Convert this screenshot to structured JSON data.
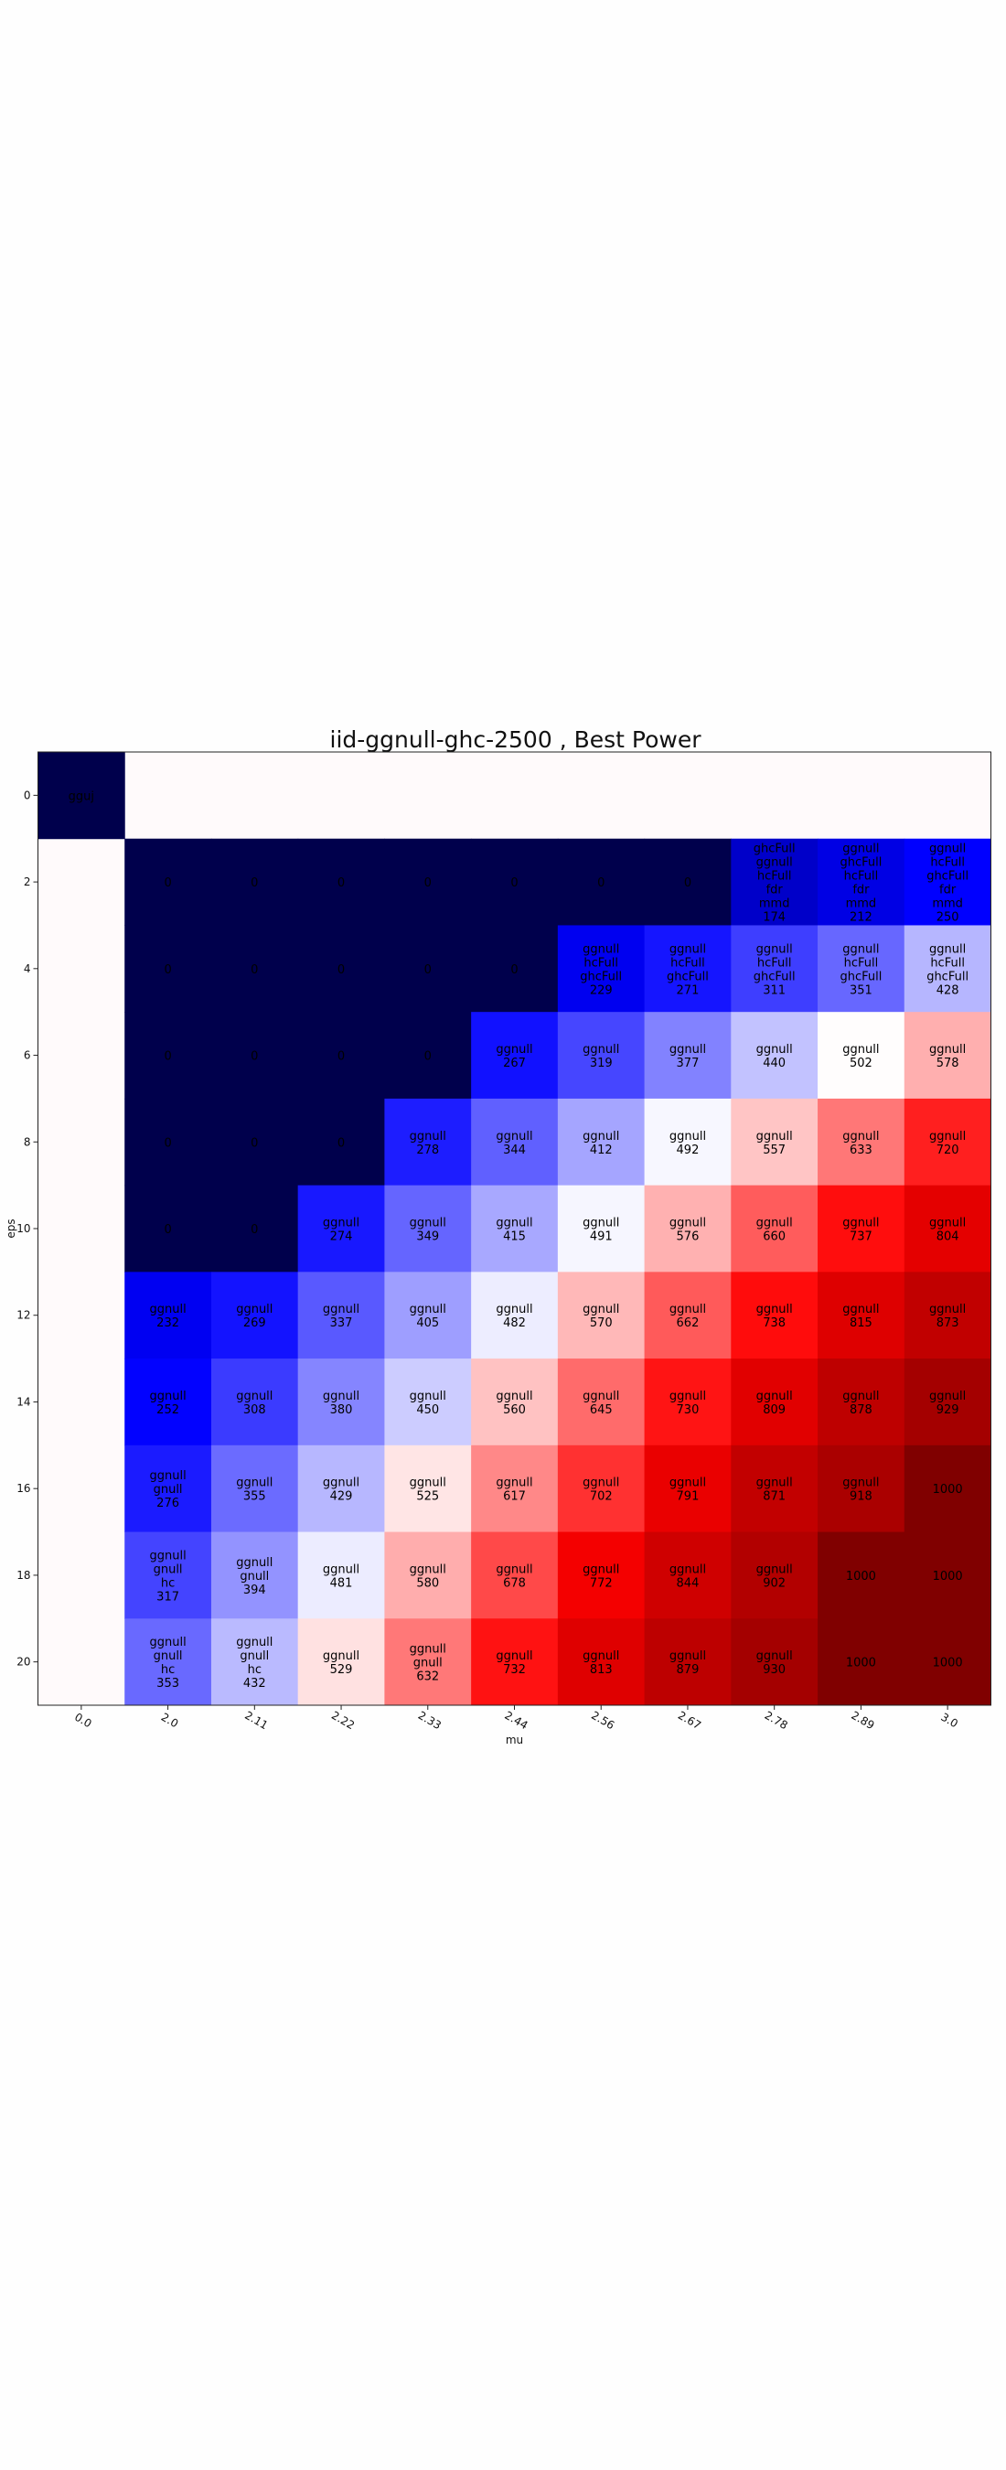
{
  "chart_data": {
    "type": "heatmap",
    "title": "iid-ggnull-ghc-2500 , Best Power",
    "xlabel": "mu",
    "ylabel": "eps",
    "x_categories": [
      "0.0",
      "2.0",
      "2.11",
      "2.22",
      "2.33",
      "2.44",
      "2.56",
      "2.67",
      "2.78",
      "2.89",
      "3.0"
    ],
    "y_categories": [
      "0",
      "2",
      "4",
      "6",
      "8",
      "10",
      "12",
      "14",
      "16",
      "18",
      "20"
    ],
    "color_scale": {
      "low": "#00004c",
      "mid": "#ffffff",
      "high": "#800000",
      "midpoint": 500
    },
    "colors": {
      "low": "#00004c",
      "blue": "#0000ff",
      "mid": "#ffffff",
      "red": "#ff0000",
      "high": "#800000"
    },
    "cells": [
      {
        "row": 0,
        "col": 0,
        "value": 0,
        "label": [
          "gguj"
        ]
      },
      {
        "row": 1,
        "col": 1,
        "value": 0,
        "label": [
          "0"
        ]
      },
      {
        "row": 1,
        "col": 2,
        "value": 0,
        "label": [
          "0"
        ]
      },
      {
        "row": 1,
        "col": 3,
        "value": 0,
        "label": [
          "0"
        ]
      },
      {
        "row": 1,
        "col": 4,
        "value": 0,
        "label": [
          "0"
        ]
      },
      {
        "row": 1,
        "col": 5,
        "value": 0,
        "label": [
          "0"
        ]
      },
      {
        "row": 1,
        "col": 6,
        "value": 0,
        "label": [
          "0"
        ]
      },
      {
        "row": 1,
        "col": 7,
        "value": 0,
        "label": [
          "0"
        ]
      },
      {
        "row": 1,
        "col": 8,
        "value": 174,
        "label": [
          "ghcFull",
          "ggnull",
          "hcFull",
          "fdr",
          "mmd",
          "174"
        ]
      },
      {
        "row": 1,
        "col": 9,
        "value": 212,
        "label": [
          "ggnull",
          "ghcFull",
          "hcFull",
          "fdr",
          "mmd",
          "212"
        ]
      },
      {
        "row": 1,
        "col": 10,
        "value": 250,
        "label": [
          "ggnull",
          "hcFull",
          "ghcFull",
          "fdr",
          "mmd",
          "250"
        ]
      },
      {
        "row": 2,
        "col": 1,
        "value": 0,
        "label": [
          "0"
        ]
      },
      {
        "row": 2,
        "col": 2,
        "value": 0,
        "label": [
          "0"
        ]
      },
      {
        "row": 2,
        "col": 3,
        "value": 0,
        "label": [
          "0"
        ]
      },
      {
        "row": 2,
        "col": 4,
        "value": 0,
        "label": [
          "0"
        ]
      },
      {
        "row": 2,
        "col": 5,
        "value": 0,
        "label": [
          "0"
        ]
      },
      {
        "row": 2,
        "col": 6,
        "value": 229,
        "label": [
          "ggnull",
          "hcFull",
          "ghcFull",
          "229"
        ]
      },
      {
        "row": 2,
        "col": 7,
        "value": 271,
        "label": [
          "ggnull",
          "hcFull",
          "ghcFull",
          "271"
        ]
      },
      {
        "row": 2,
        "col": 8,
        "value": 311,
        "label": [
          "ggnull",
          "hcFull",
          "ghcFull",
          "311"
        ]
      },
      {
        "row": 2,
        "col": 9,
        "value": 351,
        "label": [
          "ggnull",
          "hcFull",
          "ghcFull",
          "351"
        ]
      },
      {
        "row": 2,
        "col": 10,
        "value": 428,
        "label": [
          "ggnull",
          "hcFull",
          "ghcFull",
          "428"
        ]
      },
      {
        "row": 3,
        "col": 1,
        "value": 0,
        "label": [
          "0"
        ]
      },
      {
        "row": 3,
        "col": 2,
        "value": 0,
        "label": [
          "0"
        ]
      },
      {
        "row": 3,
        "col": 3,
        "value": 0,
        "label": [
          "0"
        ]
      },
      {
        "row": 3,
        "col": 4,
        "value": 0,
        "label": [
          "0"
        ]
      },
      {
        "row": 3,
        "col": 5,
        "value": 267,
        "label": [
          "ggnull",
          "267"
        ]
      },
      {
        "row": 3,
        "col": 6,
        "value": 319,
        "label": [
          "ggnull",
          "319"
        ]
      },
      {
        "row": 3,
        "col": 7,
        "value": 377,
        "label": [
          "ggnull",
          "377"
        ]
      },
      {
        "row": 3,
        "col": 8,
        "value": 440,
        "label": [
          "ggnull",
          "440"
        ]
      },
      {
        "row": 3,
        "col": 9,
        "value": 502,
        "label": [
          "ggnull",
          "502"
        ]
      },
      {
        "row": 3,
        "col": 10,
        "value": 578,
        "label": [
          "ggnull",
          "578"
        ]
      },
      {
        "row": 4,
        "col": 1,
        "value": 0,
        "label": [
          "0"
        ]
      },
      {
        "row": 4,
        "col": 2,
        "value": 0,
        "label": [
          "0"
        ]
      },
      {
        "row": 4,
        "col": 3,
        "value": 0,
        "label": [
          "0"
        ]
      },
      {
        "row": 4,
        "col": 4,
        "value": 278,
        "label": [
          "ggnull",
          "278"
        ]
      },
      {
        "row": 4,
        "col": 5,
        "value": 344,
        "label": [
          "ggnull",
          "344"
        ]
      },
      {
        "row": 4,
        "col": 6,
        "value": 412,
        "label": [
          "ggnull",
          "412"
        ]
      },
      {
        "row": 4,
        "col": 7,
        "value": 492,
        "label": [
          "ggnull",
          "492"
        ]
      },
      {
        "row": 4,
        "col": 8,
        "value": 557,
        "label": [
          "ggnull",
          "557"
        ]
      },
      {
        "row": 4,
        "col": 9,
        "value": 633,
        "label": [
          "ggnull",
          "633"
        ]
      },
      {
        "row": 4,
        "col": 10,
        "value": 720,
        "label": [
          "ggnull",
          "720"
        ]
      },
      {
        "row": 5,
        "col": 1,
        "value": 0,
        "label": [
          "0"
        ]
      },
      {
        "row": 5,
        "col": 2,
        "value": 0,
        "label": [
          "0"
        ]
      },
      {
        "row": 5,
        "col": 3,
        "value": 274,
        "label": [
          "ggnull",
          "274"
        ]
      },
      {
        "row": 5,
        "col": 4,
        "value": 349,
        "label": [
          "ggnull",
          "349"
        ]
      },
      {
        "row": 5,
        "col": 5,
        "value": 415,
        "label": [
          "ggnull",
          "415"
        ]
      },
      {
        "row": 5,
        "col": 6,
        "value": 491,
        "label": [
          "ggnull",
          "491"
        ]
      },
      {
        "row": 5,
        "col": 7,
        "value": 576,
        "label": [
          "ggnull",
          "576"
        ]
      },
      {
        "row": 5,
        "col": 8,
        "value": 660,
        "label": [
          "ggnull",
          "660"
        ]
      },
      {
        "row": 5,
        "col": 9,
        "value": 737,
        "label": [
          "ggnull",
          "737"
        ]
      },
      {
        "row": 5,
        "col": 10,
        "value": 804,
        "label": [
          "ggnull",
          "804"
        ]
      },
      {
        "row": 6,
        "col": 1,
        "value": 232,
        "label": [
          "ggnull",
          "232"
        ]
      },
      {
        "row": 6,
        "col": 2,
        "value": 269,
        "label": [
          "ggnull",
          "269"
        ]
      },
      {
        "row": 6,
        "col": 3,
        "value": 337,
        "label": [
          "ggnull",
          "337"
        ]
      },
      {
        "row": 6,
        "col": 4,
        "value": 405,
        "label": [
          "ggnull",
          "405"
        ]
      },
      {
        "row": 6,
        "col": 5,
        "value": 482,
        "label": [
          "ggnull",
          "482"
        ]
      },
      {
        "row": 6,
        "col": 6,
        "value": 570,
        "label": [
          "ggnull",
          "570"
        ]
      },
      {
        "row": 6,
        "col": 7,
        "value": 662,
        "label": [
          "ggnull",
          "662"
        ]
      },
      {
        "row": 6,
        "col": 8,
        "value": 738,
        "label": [
          "ggnull",
          "738"
        ]
      },
      {
        "row": 6,
        "col": 9,
        "value": 815,
        "label": [
          "ggnull",
          "815"
        ]
      },
      {
        "row": 6,
        "col": 10,
        "value": 873,
        "label": [
          "ggnull",
          "873"
        ]
      },
      {
        "row": 7,
        "col": 1,
        "value": 252,
        "label": [
          "ggnull",
          "252"
        ]
      },
      {
        "row": 7,
        "col": 2,
        "value": 308,
        "label": [
          "ggnull",
          "308"
        ]
      },
      {
        "row": 7,
        "col": 3,
        "value": 380,
        "label": [
          "ggnull",
          "380"
        ]
      },
      {
        "row": 7,
        "col": 4,
        "value": 450,
        "label": [
          "ggnull",
          "450"
        ]
      },
      {
        "row": 7,
        "col": 5,
        "value": 560,
        "label": [
          "ggnull",
          "560"
        ]
      },
      {
        "row": 7,
        "col": 6,
        "value": 645,
        "label": [
          "ggnull",
          "645"
        ]
      },
      {
        "row": 7,
        "col": 7,
        "value": 730,
        "label": [
          "ggnull",
          "730"
        ]
      },
      {
        "row": 7,
        "col": 8,
        "value": 809,
        "label": [
          "ggnull",
          "809"
        ]
      },
      {
        "row": 7,
        "col": 9,
        "value": 878,
        "label": [
          "ggnull",
          "878"
        ]
      },
      {
        "row": 7,
        "col": 10,
        "value": 929,
        "label": [
          "ggnull",
          "929"
        ]
      },
      {
        "row": 8,
        "col": 1,
        "value": 276,
        "label": [
          "ggnull",
          "gnull",
          "276"
        ]
      },
      {
        "row": 8,
        "col": 2,
        "value": 355,
        "label": [
          "ggnull",
          "355"
        ]
      },
      {
        "row": 8,
        "col": 3,
        "value": 429,
        "label": [
          "ggnull",
          "429"
        ]
      },
      {
        "row": 8,
        "col": 4,
        "value": 525,
        "label": [
          "ggnull",
          "525"
        ]
      },
      {
        "row": 8,
        "col": 5,
        "value": 617,
        "label": [
          "ggnull",
          "617"
        ]
      },
      {
        "row": 8,
        "col": 6,
        "value": 702,
        "label": [
          "ggnull",
          "702"
        ]
      },
      {
        "row": 8,
        "col": 7,
        "value": 791,
        "label": [
          "ggnull",
          "791"
        ]
      },
      {
        "row": 8,
        "col": 8,
        "value": 871,
        "label": [
          "ggnull",
          "871"
        ]
      },
      {
        "row": 8,
        "col": 9,
        "value": 918,
        "label": [
          "ggnull",
          "918"
        ]
      },
      {
        "row": 8,
        "col": 10,
        "value": 1000,
        "label": [
          "1000"
        ]
      },
      {
        "row": 9,
        "col": 1,
        "value": 317,
        "label": [
          "ggnull",
          "gnull",
          "hc",
          "317"
        ]
      },
      {
        "row": 9,
        "col": 2,
        "value": 394,
        "label": [
          "ggnull",
          "gnull",
          "394"
        ]
      },
      {
        "row": 9,
        "col": 3,
        "value": 481,
        "label": [
          "ggnull",
          "481"
        ]
      },
      {
        "row": 9,
        "col": 4,
        "value": 580,
        "label": [
          "ggnull",
          "580"
        ]
      },
      {
        "row": 9,
        "col": 5,
        "value": 678,
        "label": [
          "ggnull",
          "678"
        ]
      },
      {
        "row": 9,
        "col": 6,
        "value": 772,
        "label": [
          "ggnull",
          "772"
        ]
      },
      {
        "row": 9,
        "col": 7,
        "value": 844,
        "label": [
          "ggnull",
          "844"
        ]
      },
      {
        "row": 9,
        "col": 8,
        "value": 902,
        "label": [
          "ggnull",
          "902"
        ]
      },
      {
        "row": 9,
        "col": 9,
        "value": 1000,
        "label": [
          "1000"
        ]
      },
      {
        "row": 9,
        "col": 10,
        "value": 1000,
        "label": [
          "1000"
        ]
      },
      {
        "row": 10,
        "col": 1,
        "value": 353,
        "label": [
          "ggnull",
          "gnull",
          "hc",
          "353"
        ]
      },
      {
        "row": 10,
        "col": 2,
        "value": 432,
        "label": [
          "ggnull",
          "gnull",
          "hc",
          "432"
        ]
      },
      {
        "row": 10,
        "col": 3,
        "value": 529,
        "label": [
          "ggnull",
          "529"
        ]
      },
      {
        "row": 10,
        "col": 4,
        "value": 632,
        "label": [
          "ggnull",
          "gnull",
          "632"
        ]
      },
      {
        "row": 10,
        "col": 5,
        "value": 732,
        "label": [
          "ggnull",
          "732"
        ]
      },
      {
        "row": 10,
        "col": 6,
        "value": 813,
        "label": [
          "ggnull",
          "813"
        ]
      },
      {
        "row": 10,
        "col": 7,
        "value": 879,
        "label": [
          "ggnull",
          "879"
        ]
      },
      {
        "row": 10,
        "col": 8,
        "value": 930,
        "label": [
          "ggnull",
          "930"
        ]
      },
      {
        "row": 10,
        "col": 9,
        "value": 1000,
        "label": [
          "1000"
        ]
      },
      {
        "row": 10,
        "col": 10,
        "value": 1000,
        "label": [
          "1000"
        ]
      }
    ]
  }
}
